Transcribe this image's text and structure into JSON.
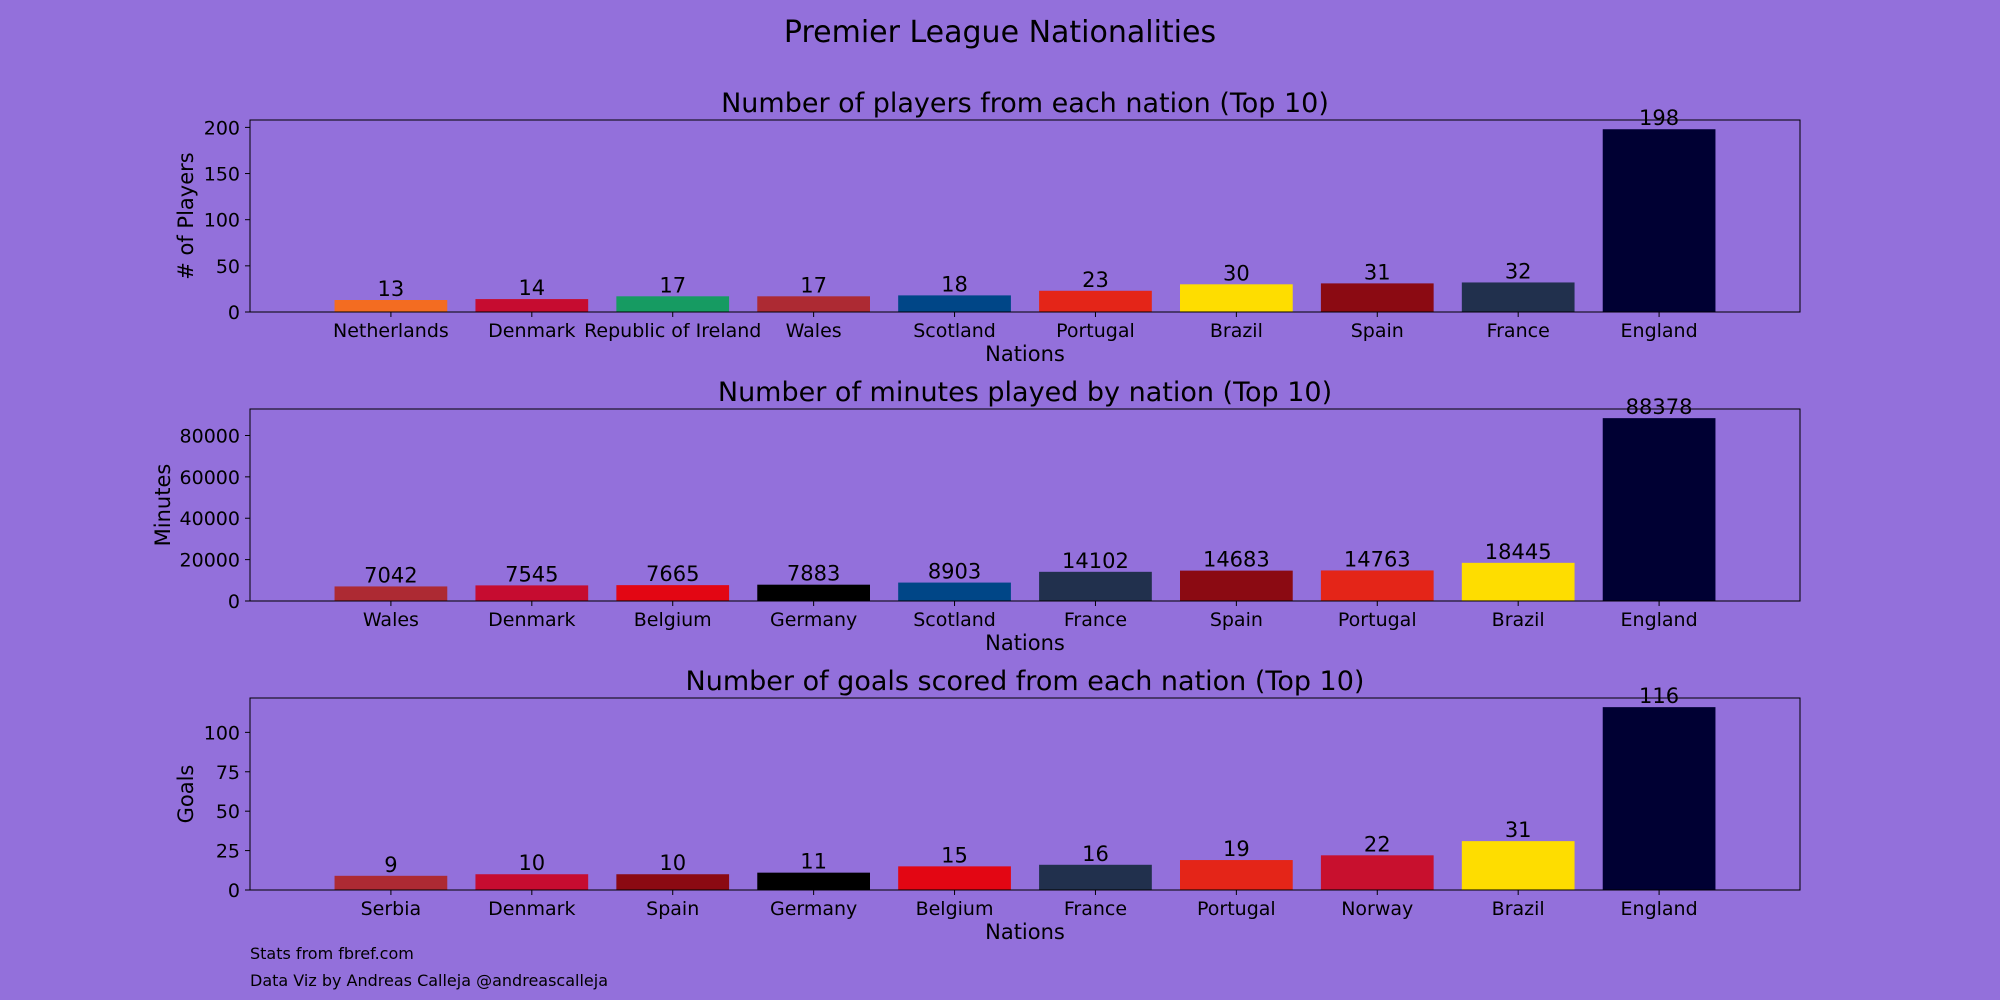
{
  "figure": {
    "suptitle": "Premier League Nationalities",
    "background": "#9370DB",
    "footer_source": "Stats from fbref.com",
    "footer_credit": "Data Viz by Andreas Calleja @andreascalleja"
  },
  "chart_data": [
    {
      "type": "bar",
      "title": "Number of players from each nation (Top 10)",
      "xlabel": "Nations",
      "ylabel": "# of Players",
      "categories": [
        "Netherlands",
        "Denmark",
        "Republic of Ireland",
        "Wales",
        "Scotland",
        "Portugal",
        "Brazil",
        "Spain",
        "France",
        "England"
      ],
      "values": [
        13,
        14,
        17,
        17,
        18,
        23,
        30,
        31,
        32,
        198
      ],
      "colors": [
        "#F36C21",
        "#C60C30",
        "#169B62",
        "#AD2A33",
        "#004687",
        "#E42518",
        "#FEDD00",
        "#8B0A12",
        "#21304D",
        "#000033"
      ],
      "ylim": [
        0,
        208
      ],
      "yticks": [
        0,
        50,
        100,
        150,
        200
      ],
      "grid": false
    },
    {
      "type": "bar",
      "title": "Number of minutes played by nation (Top 10)",
      "xlabel": "Nations",
      "ylabel": "Minutes",
      "categories": [
        "Wales",
        "Denmark",
        "Belgium",
        "Germany",
        "Scotland",
        "France",
        "Spain",
        "Portugal",
        "Brazil",
        "England"
      ],
      "values": [
        7042,
        7545,
        7665,
        7883,
        8903,
        14102,
        14683,
        14763,
        18445,
        88378
      ],
      "colors": [
        "#AD2A33",
        "#C60C30",
        "#E30613",
        "#000000",
        "#004687",
        "#21304D",
        "#8B0A12",
        "#E42518",
        "#FEDD00",
        "#000033"
      ],
      "ylim": [
        0,
        92797
      ],
      "yticks": [
        0,
        20000,
        40000,
        60000,
        80000
      ],
      "grid": false
    },
    {
      "type": "bar",
      "title": "Number of goals scored from each nation (Top 10)",
      "xlabel": "Nations",
      "ylabel": "Goals",
      "categories": [
        "Serbia",
        "Denmark",
        "Spain",
        "Germany",
        "Belgium",
        "France",
        "Portugal",
        "Norway",
        "Brazil",
        "England"
      ],
      "values": [
        9,
        10,
        10,
        11,
        15,
        16,
        19,
        22,
        31,
        116
      ],
      "colors": [
        "#AD2A33",
        "#C60C30",
        "#8B0A12",
        "#000000",
        "#E30613",
        "#21304D",
        "#E42518",
        "#C8102E",
        "#FEDD00",
        "#000033"
      ],
      "ylim": [
        0,
        121.8
      ],
      "yticks": [
        0,
        25,
        50,
        75,
        100
      ],
      "grid": false
    }
  ]
}
